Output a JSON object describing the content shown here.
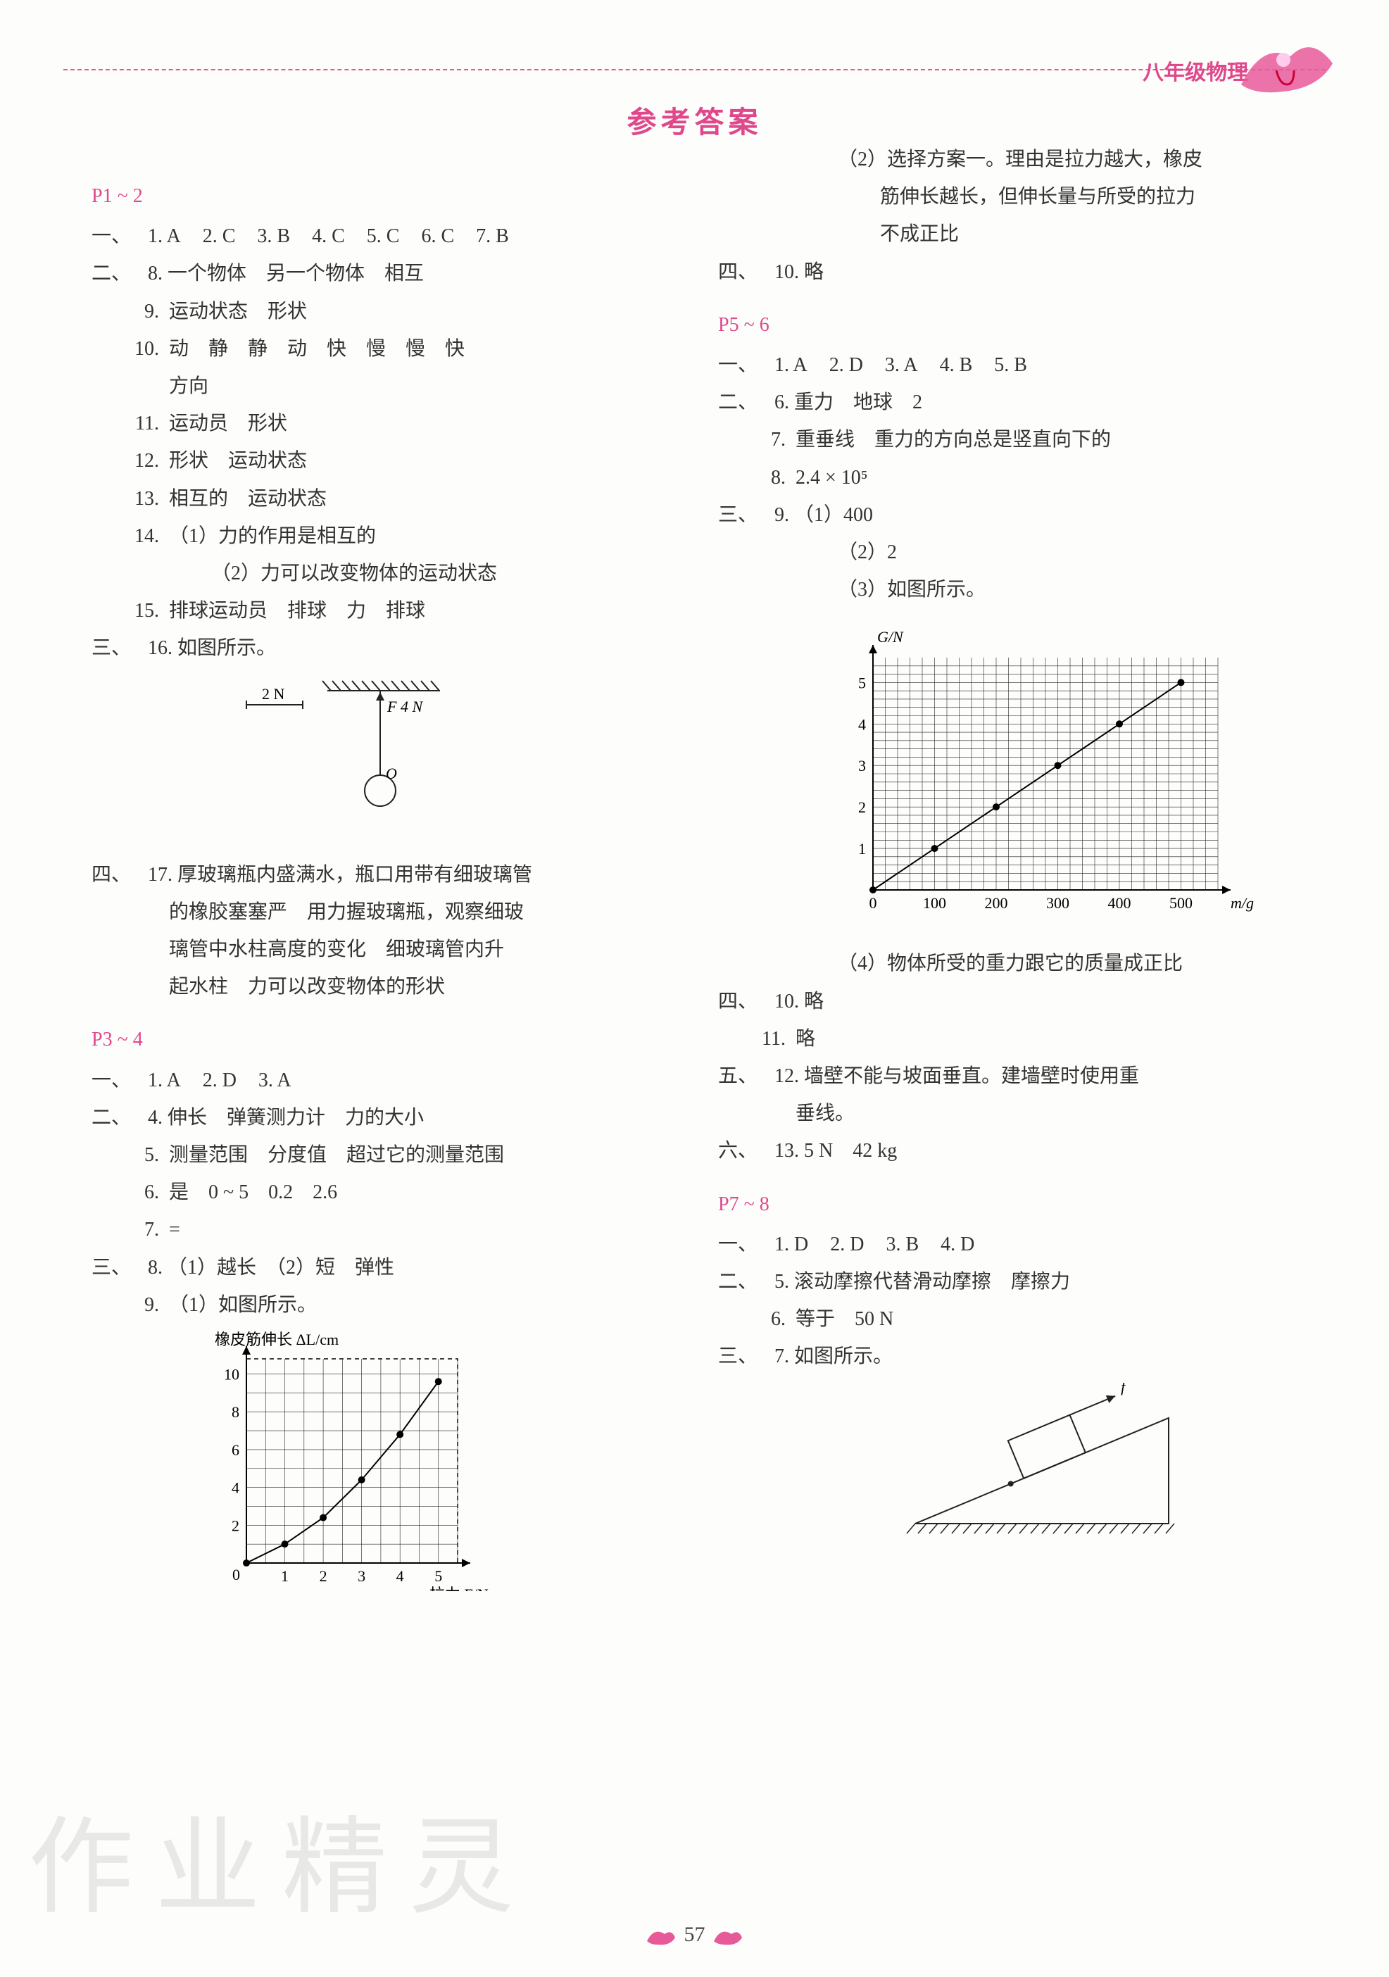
{
  "header": {
    "subject": "八年级物理"
  },
  "title": "参考答案",
  "page_number": "57",
  "watermark": "作业精灵",
  "left": {
    "p12": {
      "range": "P1 ~ 2",
      "sec1": {
        "label": "一、",
        "mc": [
          "1. A",
          "2. C",
          "3. B",
          "4. C",
          "5. C",
          "6. C",
          "7. B"
        ]
      },
      "sec2": {
        "label": "二、",
        "q8": "一个物体　另一个物体　相互",
        "q9": "运动状态　形状",
        "q10a": "动　静　静　动　快　慢　慢　快",
        "q10b": "方向",
        "q11": "运动员　形状",
        "q12": "形状　运动状态",
        "q13": "相互的　运动状态",
        "q14a": "（1）力的作用是相互的",
        "q14b": "（2）力可以改变物体的运动状态",
        "q15": "排球运动员　排球　力　排球"
      },
      "sec3": {
        "label": "三、",
        "q16": "如图所示。"
      },
      "fig16": {
        "label_2N": "2 N",
        "label_F4N": "F  4 N",
        "label_O": "O",
        "arrow_len": 70,
        "rod_len": 120,
        "circle_r": 22,
        "stroke": "#222",
        "hatch": "#222"
      },
      "sec4": {
        "label": "四、",
        "q17a": "厚玻璃瓶内盛满水，瓶口用带有细玻璃管",
        "q17b": "的橡胶塞塞严　用力握玻璃瓶，观察细玻",
        "q17c": "璃管中水柱高度的变化　细玻璃管内升",
        "q17d": "起水柱　力可以改变物体的形状"
      }
    },
    "p34": {
      "range": "P3 ~ 4",
      "sec1": {
        "label": "一、",
        "mc": [
          "1. A",
          "2. D",
          "3. A"
        ]
      },
      "sec2": {
        "label": "二、",
        "q4": "伸长　弹簧测力计　力的大小",
        "q5": "测量范围　分度值　超过它的测量范围",
        "q6": "是　0 ~ 5　0.2　2.6",
        "q7": "="
      },
      "sec3": {
        "label": "三、",
        "q8": "（1）越长　（2）短　弹性",
        "q9": "（1）如图所示。"
      },
      "fig9": {
        "type": "scatter-line",
        "ylabel": "橡皮筋伸长 ΔL/cm",
        "xlabel": "拉力 F/N",
        "xmax": 5.5,
        "ymax": 10.8,
        "xticks": [
          1,
          2,
          3,
          4,
          5
        ],
        "yticks": [
          2,
          4,
          6,
          8,
          10
        ],
        "points": [
          [
            0,
            0
          ],
          [
            1,
            1.0
          ],
          [
            2,
            2.4
          ],
          [
            3,
            4.4
          ],
          [
            4,
            6.8
          ],
          [
            5,
            9.6
          ]
        ],
        "grid": "#222",
        "bg": "#fff",
        "dot_r": 5
      }
    }
  },
  "right": {
    "carry9_2a": "（2）选择方案一。理由是拉力越大，橡皮",
    "carry9_2b": "筋伸长越长，但伸长量与所受的拉力",
    "carry9_2c": "不成正比",
    "sec4_10": {
      "label": "四、",
      "txt": "略"
    },
    "p56": {
      "range": "P5 ~ 6",
      "sec1": {
        "label": "一、",
        "mc": [
          "1. A",
          "2. D",
          "3. A",
          "4. B",
          "5. B"
        ]
      },
      "sec2": {
        "label": "二、",
        "q6": "重力　地球　2",
        "q7": "重垂线　重力的方向总是竖直向下的",
        "q8": "2.4 × 10⁵"
      },
      "sec3": {
        "label": "三、",
        "q9_1": "（1）400",
        "q9_2": "（2）2",
        "q9_3": "（3）如图所示。"
      },
      "fig9": {
        "type": "scatter-line",
        "ylabel": "G/N",
        "xlabel": "m/g",
        "xmax": 560,
        "ymax": 5.6,
        "xticks": [
          0,
          100,
          200,
          300,
          400,
          500
        ],
        "yticks": [
          1,
          2,
          3,
          4,
          5
        ],
        "points": [
          [
            0,
            0
          ],
          [
            100,
            1
          ],
          [
            200,
            2
          ],
          [
            300,
            3
          ],
          [
            400,
            4
          ],
          [
            500,
            5
          ]
        ],
        "grid": "#222",
        "bg": "#fff",
        "dot_r": 5
      },
      "q9_4": "（4）物体所受的重力跟它的质量成正比",
      "sec4": {
        "label": "四、",
        "q10": "略",
        "q11": "略"
      },
      "sec5": {
        "label": "五、",
        "q12a": "墙壁不能与坡面垂直。建墙壁时使用重",
        "q12b": "垂线。"
      },
      "sec6": {
        "label": "六、",
        "q13": "5 N　42 kg"
      }
    },
    "p78": {
      "range": "P7 ~ 8",
      "sec1": {
        "label": "一、",
        "mc": [
          "1. D",
          "2. D",
          "3. B",
          "4. D"
        ]
      },
      "sec2": {
        "label": "二、",
        "q5": "滚动摩擦代替滑动摩擦　摩擦力",
        "q6": "等于　50 N"
      },
      "sec3": {
        "label": "三、",
        "q7": "如图所示。"
      },
      "fig7": {
        "label_f": "f",
        "stroke": "#222"
      }
    }
  }
}
